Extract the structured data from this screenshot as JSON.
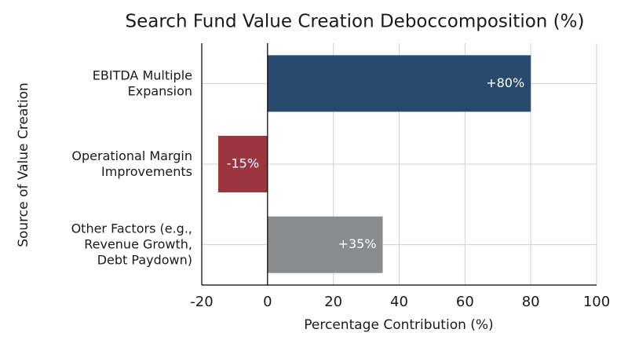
{
  "chart_data": {
    "type": "barh",
    "title": "Search Fund Value Creation Deboccomposition (%)",
    "x_label": "Percentage Contribution (%)",
    "y_label": "Source of Value Creation",
    "categories": [
      "EBITDA Multiple\nExpansion",
      "Operational Margin\nImprovements",
      "Other Factors (e.g.,\nRevenue Growth,\nDebt Paydown)"
    ],
    "values": [
      80,
      -15,
      35
    ],
    "value_labels": [
      "+80%",
      "-15%",
      "+35%"
    ],
    "colors": [
      "#274a6e",
      "#9b3540",
      "#8a8b8d"
    ],
    "xlim": [
      -20,
      100
    ],
    "xticks": [
      -20,
      0,
      20,
      40,
      60,
      80,
      100
    ],
    "grid": true
  }
}
